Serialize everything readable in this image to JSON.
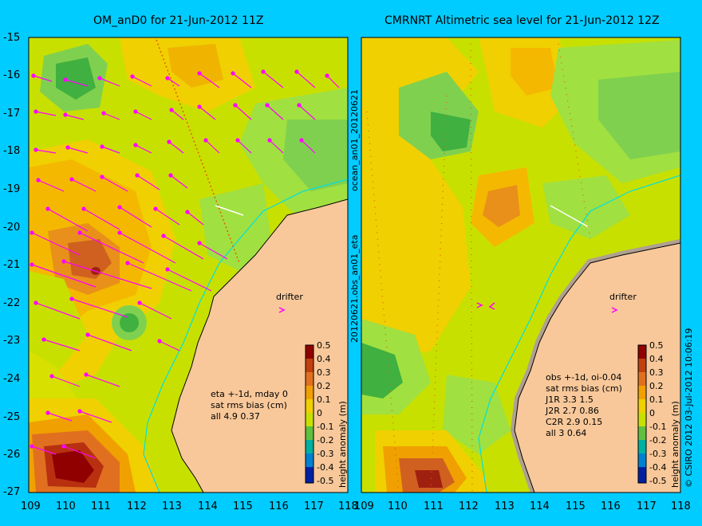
{
  "left_panel": {
    "title": "OM_anD0 for 21-Jun-2012 11Z",
    "stats": [
      "eta +-1d, mday 0",
      "sat rms bias (cm)",
      "all 4.9 0.37"
    ],
    "drifter": "drifter",
    "colorbar_label": "height anomaly (m)"
  },
  "right_panel": {
    "title": "CMRNRT Altimetric sea level  for 21-Jun-2012 12Z",
    "stats": [
      "obs +-1d, oi-0.04",
      "sat rms bias (cm)",
      "J1R   3.3 1.5",
      "J2R   2.7 0.86",
      "C2R   2.9 0.15",
      "all 3 0.64"
    ],
    "drifter": "drifter",
    "colorbar_label": "height anomaly (m)"
  },
  "side_label_middle": "20120621.obs_an01_eta",
  "side_label_middle_top": "ocean_an01_20120621",
  "side_label_right": "© CSIRO 2012   03-Jul-2012 10:06:19",
  "colorbar_ticks": [
    "0.5",
    "0.4",
    "0.3",
    "0.2",
    "0.1",
    "0",
    "-0.1",
    "-0.2",
    "-0.3",
    "-0.4",
    "-0.5"
  ],
  "y_ticks": [
    "-15",
    "-16",
    "-17",
    "-18",
    "-19",
    "-20",
    "-21",
    "-22",
    "-23",
    "-24",
    "-25",
    "-26",
    "-27"
  ],
  "x_ticks": [
    "109",
    "110",
    "111",
    "112",
    "113",
    "114",
    "115",
    "116",
    "117",
    "118"
  ],
  "colors": {
    "background": "#00ccff",
    "land": "#f8c89a",
    "vector": "#ff00ff",
    "coast_current": "#00e0e0"
  }
}
